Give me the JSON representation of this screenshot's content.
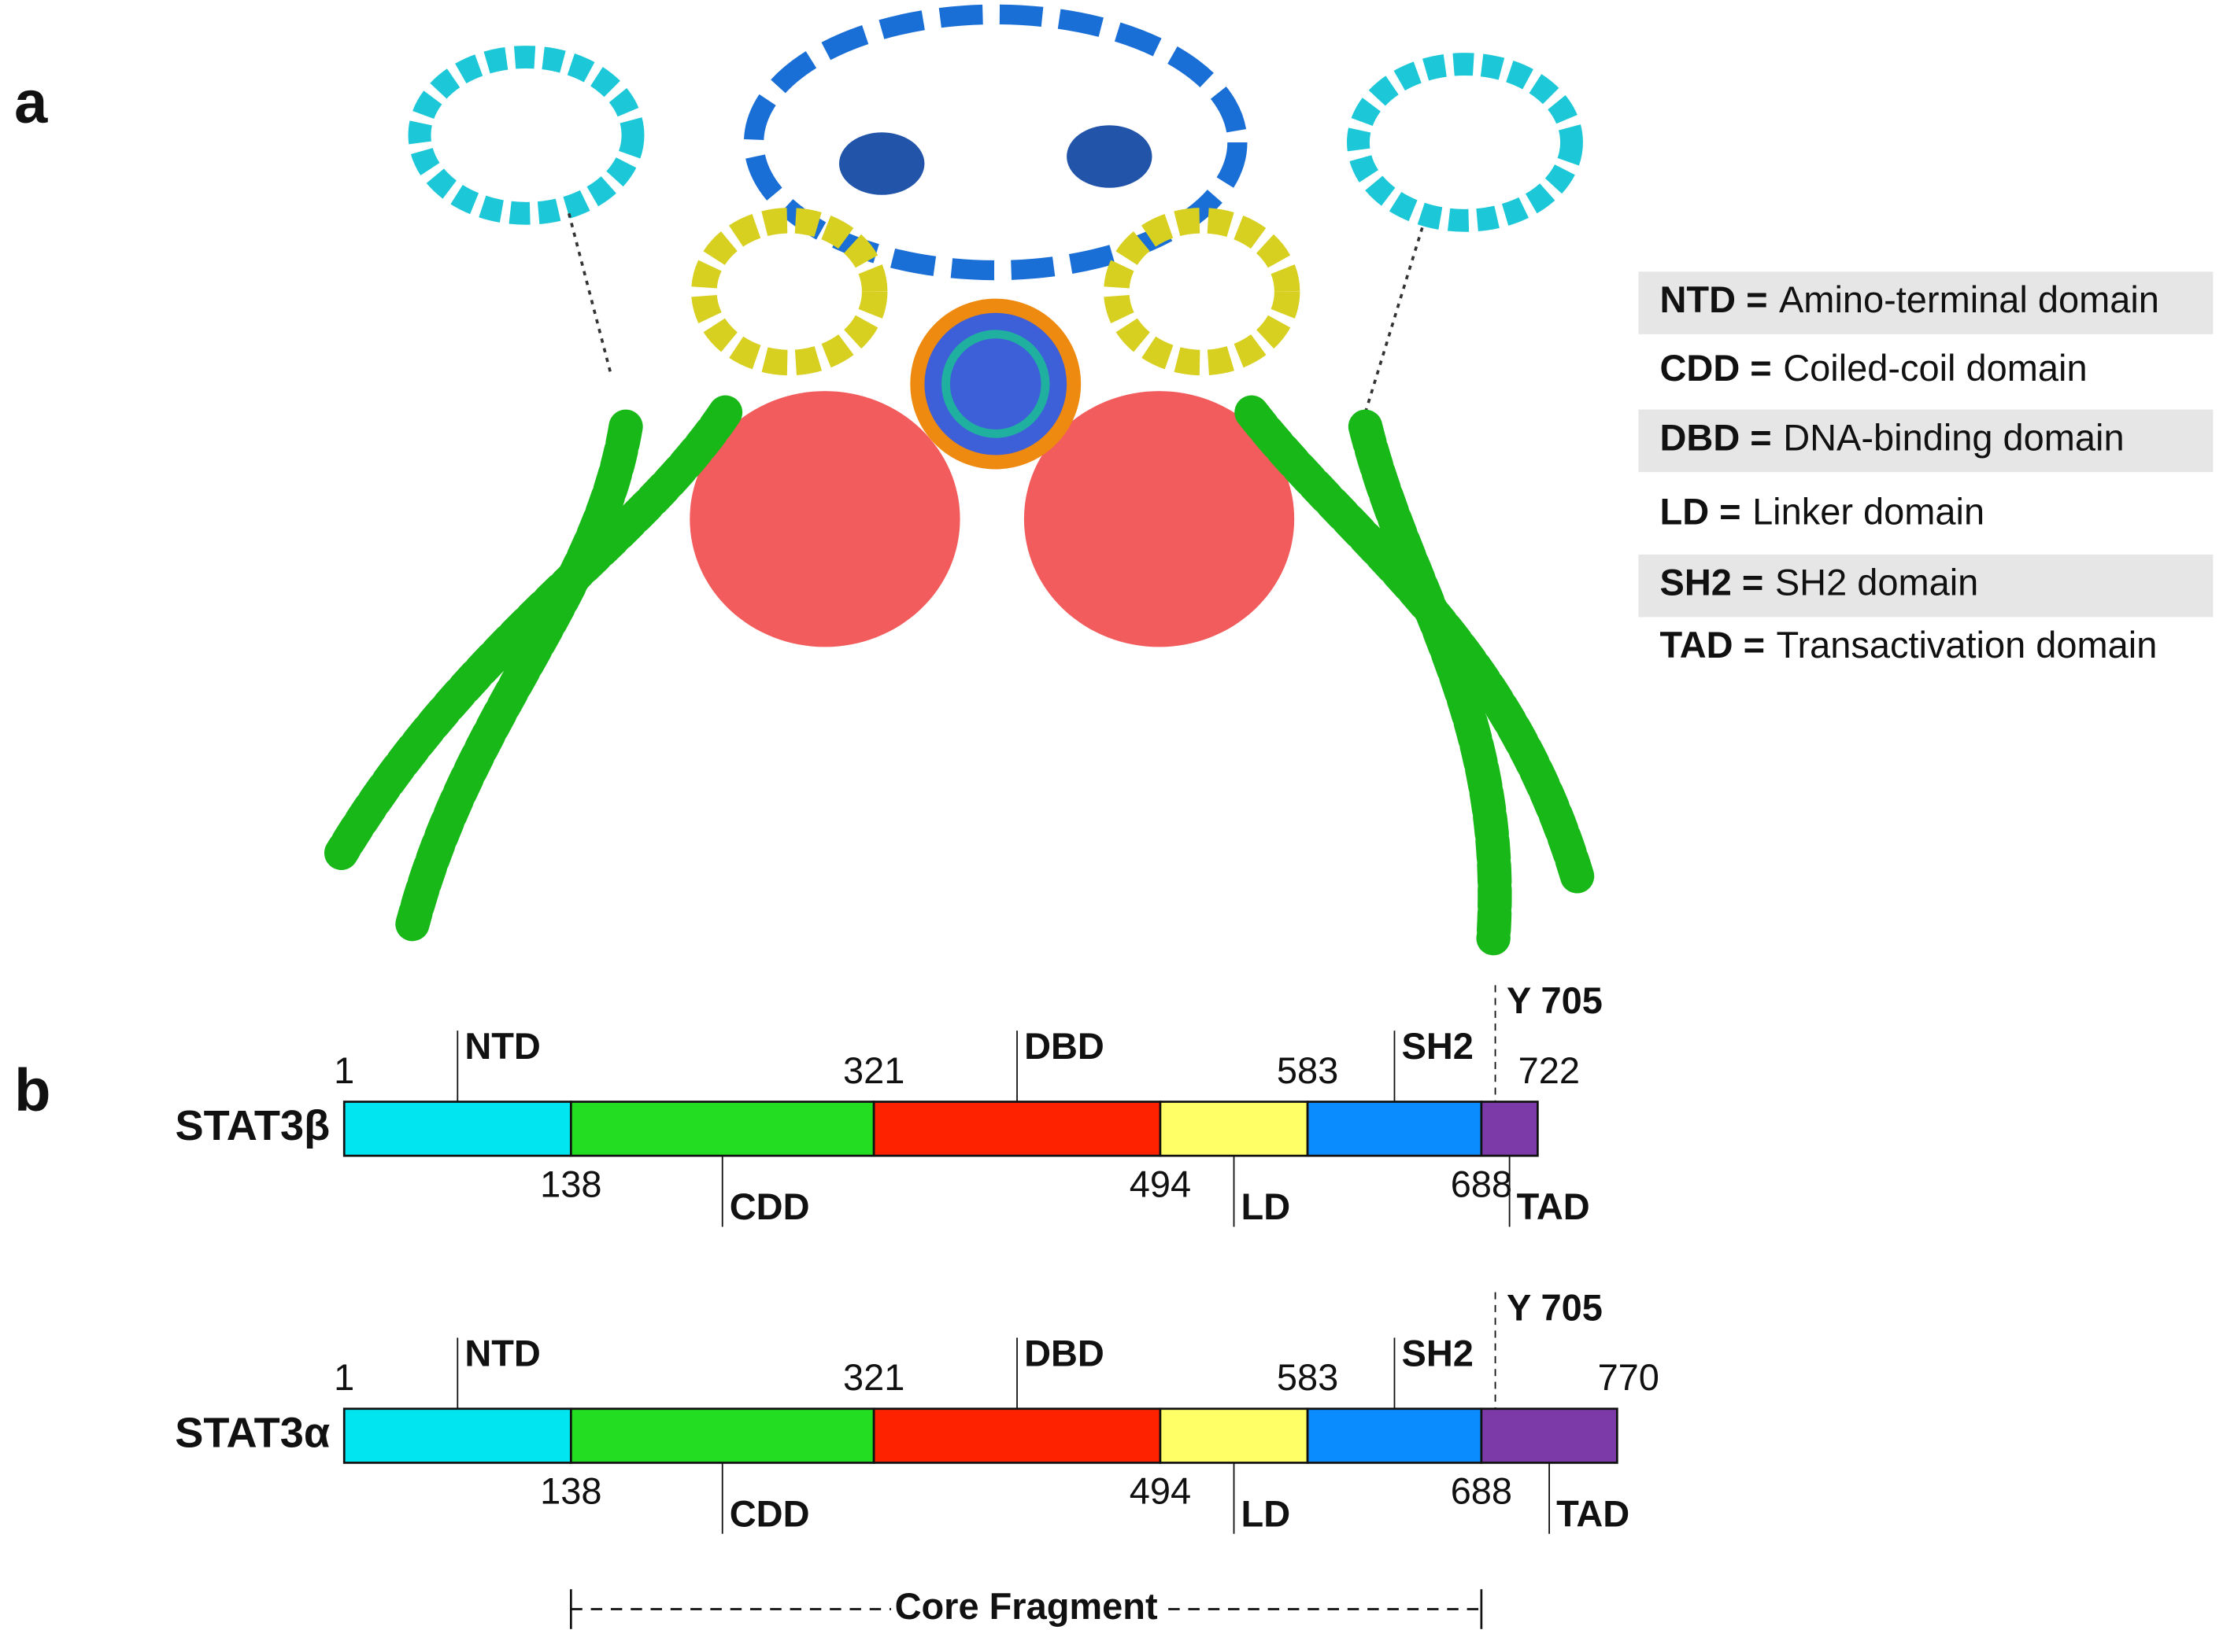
{
  "panel_a_label": "a",
  "panel_b_label": "b",
  "legend": [
    {
      "abbr": "NTD =",
      "description": "Amino-terminal domain"
    },
    {
      "abbr": "CDD =",
      "description": "Coiled-coil domain"
    },
    {
      "abbr": "DBD =",
      "description": "DNA-binding domain"
    },
    {
      "abbr": "LD =",
      "description": "Linker domain"
    },
    {
      "abbr": "SH2 =",
      "description": "SH2 domain"
    },
    {
      "abbr": "TAD =",
      "description": "Transactivation domain"
    }
  ],
  "domains": [
    {
      "name": "NTD",
      "color": "#00e5f0"
    },
    {
      "name": "CDD",
      "color": "#22dd22"
    },
    {
      "name": "DBD",
      "color": "#ff2200"
    },
    {
      "name": "LD",
      "color": "#ffff66"
    },
    {
      "name": "SH2",
      "color": "#0a8cff"
    },
    {
      "name": "TAD",
      "color": "#7b3aa8"
    }
  ],
  "isoforms": [
    {
      "name": "STAT3β",
      "boundaries": [
        1,
        138,
        321,
        494,
        583,
        688,
        722
      ],
      "site": {
        "label": "Y 705",
        "residue": 705
      }
    },
    {
      "name": "STAT3α",
      "boundaries": [
        1,
        138,
        321,
        494,
        583,
        688,
        770
      ],
      "site": {
        "label": "Y 705",
        "residue": 705
      }
    }
  ],
  "core_fragment": "Core Fragment"
}
